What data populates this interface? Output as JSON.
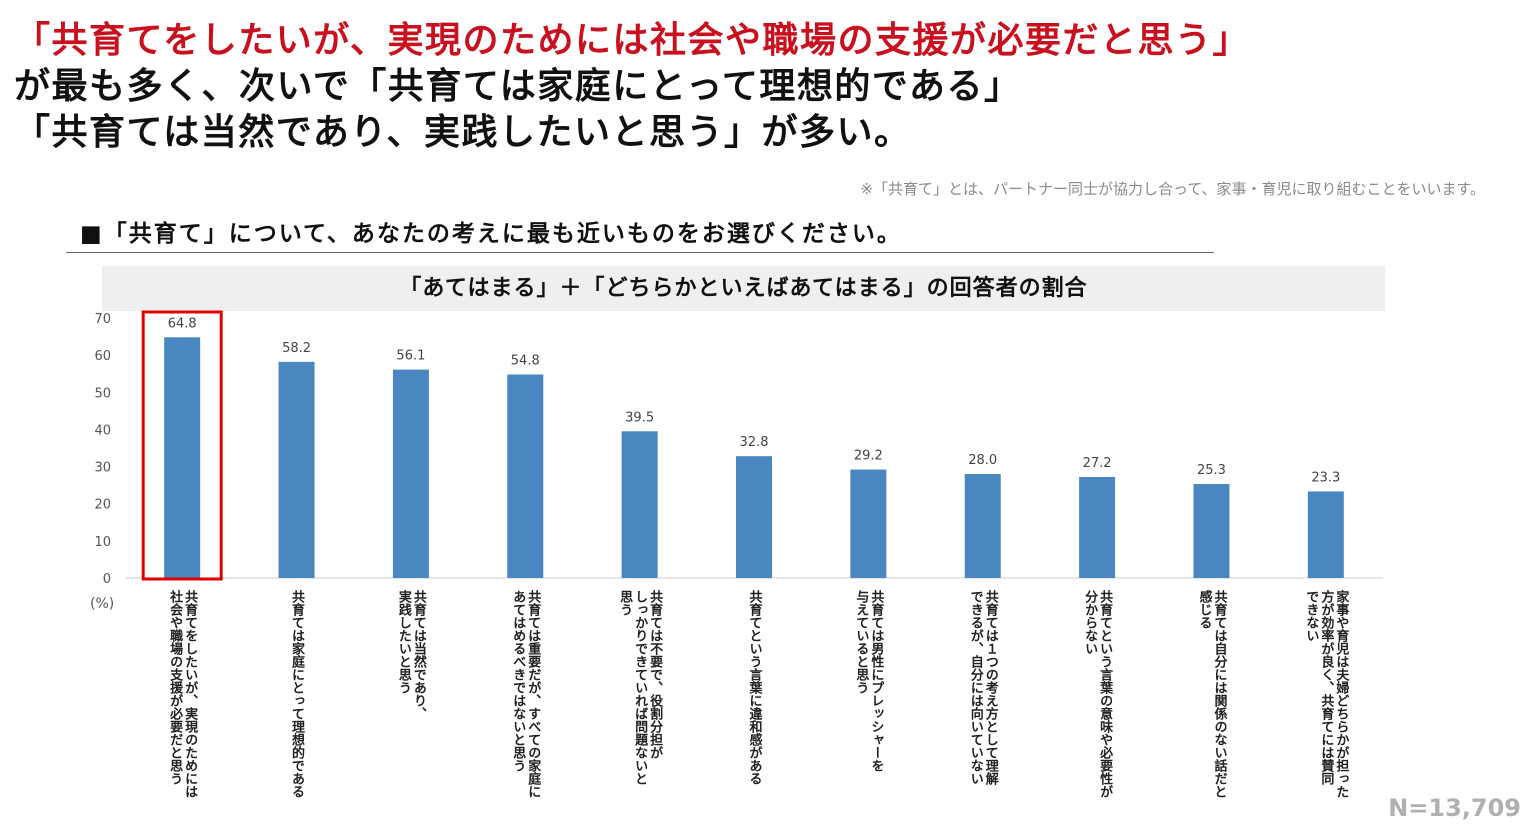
{
  "header": {
    "line1": "「共育てをしたいが、実現のためには社会や職場の支援が必要だと思う」",
    "line2": "が最も多く、次いで「共育ては家庭にとって理想的である」",
    "line3": "「共育ては当然であり、実践したいと思う」が多い。",
    "note": "※「共育て」とは、パートナー同士が協力し合って、家事・育児に取り組むことをいいます。",
    "question": "■「共育て」について、あなたの考えに最も近いものをお選びください。"
  },
  "footer": {
    "n_label": "N=13,709"
  },
  "colors": {
    "bar": "#4a86bf",
    "highlight": "#e00000",
    "headline_red": "#c8101e"
  },
  "chart_data": {
    "type": "bar",
    "title": "「あてはまる」＋「どちらかといえばあてはまる」の回答者の割合",
    "ylabel": "(%)",
    "ylim": [
      0,
      70
    ],
    "yticks": [
      0,
      10,
      20,
      30,
      40,
      50,
      60,
      70
    ],
    "highlight_index": 0,
    "categories": [
      "共育てをしたいが、実現のためには\n社会や職場の支援が必要だと思う",
      "共育ては家庭にとって理想的である",
      "共育ては当然であり、\n実践したいと思う",
      "共育ては重要だが、すべての家庭に\nあてはめるべきではないと思う",
      "共育ては不要で、役割分担が\nしっかりできていれば問題ないと\n思う",
      "共育てという言葉に違和感がある",
      "共育ては男性にプレッシャーを\n与えていると思う",
      "共育ては１つの考え方として理解\nできるが、自分には向いていない",
      "共育てという言葉の意味や必要性が\n分からない",
      "共育ては自分には関係のない話だと\n感じる",
      "家事や育児は夫婦どちらかが担った\n方が効率が良く、共育てには賛同\nできない"
    ],
    "values": [
      64.8,
      58.2,
      56.1,
      54.8,
      39.5,
      32.8,
      29.2,
      28.0,
      27.2,
      25.3,
      23.3
    ],
    "value_labels": [
      "64.8",
      "58.2",
      "56.1",
      "54.8",
      "39.5",
      "32.8",
      "29.2",
      "28.0",
      "27.2",
      "25.3",
      "23.3"
    ]
  }
}
